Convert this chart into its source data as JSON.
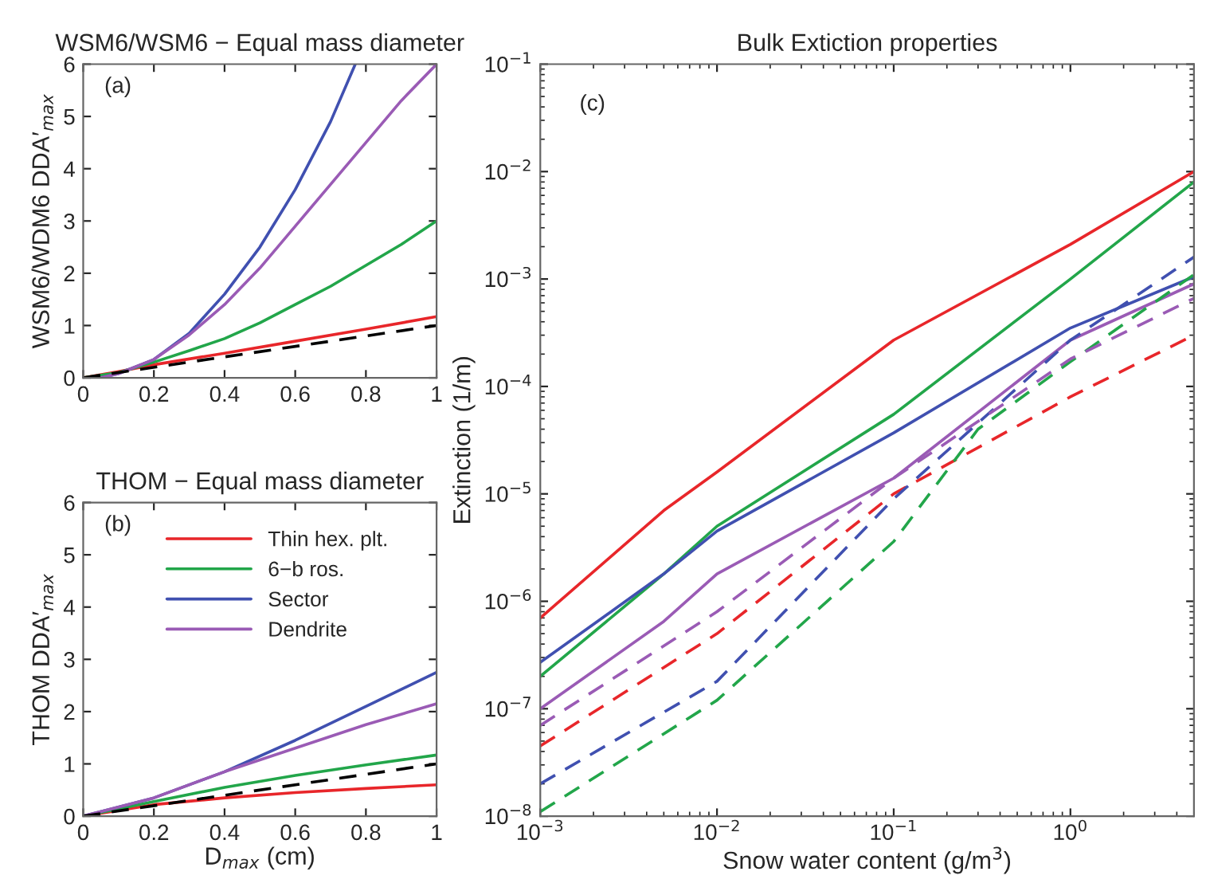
{
  "chart_data": [
    {
      "type": "line",
      "title": "WSM6/WSM6 − Equal mass diameter",
      "ylabel": "WSM6/WDM6 DDA′$_{max}$",
      "annotations": [
        "(a)"
      ],
      "xlim": [
        0,
        1
      ],
      "ylim": [
        0,
        6
      ],
      "xticks": [
        0,
        0.2,
        0.4,
        0.6,
        0.8,
        1
      ],
      "yticks": [
        0,
        1,
        2,
        3,
        4,
        5,
        6
      ],
      "legend": false,
      "grid": false,
      "series": [
        {
          "color": "#e8262a",
          "x": [
            0,
            0.1,
            0.2,
            0.4,
            0.6,
            0.8,
            1
          ],
          "values": [
            0,
            0.12,
            0.25,
            0.47,
            0.7,
            0.93,
            1.17
          ]
        },
        {
          "color": "#22a64a",
          "x": [
            0,
            0.1,
            0.2,
            0.3,
            0.4,
            0.5,
            0.6,
            0.7,
            0.8,
            0.9,
            1
          ],
          "values": [
            0,
            0.1,
            0.3,
            0.52,
            0.75,
            1.05,
            1.4,
            1.75,
            2.15,
            2.55,
            3.0
          ]
        },
        {
          "color": "#4050b0",
          "x": [
            0.05,
            0.1,
            0.2,
            0.3,
            0.4,
            0.5,
            0.6,
            0.7,
            0.77
          ],
          "values": [
            0,
            0.08,
            0.35,
            0.85,
            1.6,
            2.5,
            3.6,
            4.9,
            6
          ]
        },
        {
          "color": "#9a5bb5",
          "x": [
            0.05,
            0.1,
            0.2,
            0.3,
            0.4,
            0.5,
            0.6,
            0.7,
            0.8,
            0.9,
            1
          ],
          "values": [
            0,
            0.08,
            0.35,
            0.82,
            1.4,
            2.1,
            2.9,
            3.7,
            4.5,
            5.3,
            6
          ]
        },
        {
          "color": "#000000",
          "line_style": "dashed",
          "x": [
            0,
            1
          ],
          "values": [
            0,
            1
          ]
        }
      ]
    },
    {
      "type": "line",
      "title": "THOM − Equal mass diameter",
      "ylabel": "THOM DDA′$_{max}$",
      "xlabel": "D$_{max}$ (cm)",
      "annotations": [
        "(b)"
      ],
      "xlim": [
        0,
        1
      ],
      "ylim": [
        0,
        6
      ],
      "xticks": [
        0,
        0.2,
        0.4,
        0.6,
        0.8,
        1
      ],
      "yticks": [
        0,
        1,
        2,
        3,
        4,
        5,
        6
      ],
      "legend": "top",
      "grid": false,
      "series": [
        {
          "name": "Thin hex. plt.",
          "color": "#e8262a",
          "x": [
            0,
            0.2,
            0.4,
            0.6,
            0.8,
            1
          ],
          "values": [
            0,
            0.22,
            0.35,
            0.45,
            0.53,
            0.6
          ]
        },
        {
          "name": "6−b ros.",
          "color": "#22a64a",
          "x": [
            0,
            0.2,
            0.4,
            0.6,
            0.8,
            1
          ],
          "values": [
            0,
            0.28,
            0.55,
            0.78,
            0.98,
            1.17
          ]
        },
        {
          "name": "Sector",
          "color": "#4050b0",
          "x": [
            0,
            0.2,
            0.4,
            0.6,
            0.8,
            1
          ],
          "values": [
            0,
            0.35,
            0.85,
            1.45,
            2.1,
            2.75
          ]
        },
        {
          "name": "Dendrite",
          "color": "#9a5bb5",
          "x": [
            0,
            0.2,
            0.4,
            0.6,
            0.8,
            1
          ],
          "values": [
            0,
            0.35,
            0.85,
            1.3,
            1.75,
            2.15
          ]
        },
        {
          "color": "#000000",
          "line_style": "dashed",
          "x": [
            0,
            1
          ],
          "values": [
            0,
            1
          ]
        }
      ]
    },
    {
      "type": "line",
      "title": "Bulk Extiction properties",
      "xlabel": "Snow water content (g/m$^{3}$)",
      "ylabel": "Extinction (1/m)",
      "annotations": [
        "(c)"
      ],
      "log": "xy",
      "xlim": [
        0.001,
        5
      ],
      "ylim": [
        1e-08,
        0.1
      ],
      "xticks": [
        {
          "value": 0.001,
          "label": "10$^{−3}$"
        },
        {
          "value": 0.01,
          "label": "10$^{−2}$"
        },
        {
          "value": 0.1,
          "label": "10$^{−1}$"
        },
        {
          "value": 1,
          "label": "10$^{0}$"
        }
      ],
      "yticks": [
        {
          "value": 1e-08,
          "label": "10$^{−8}$"
        },
        {
          "value": 1e-07,
          "label": "10$^{−7}$"
        },
        {
          "value": 1e-06,
          "label": "10$^{−6}$"
        },
        {
          "value": 1e-05,
          "label": "10$^{−5}$"
        },
        {
          "value": 0.0001,
          "label": "10$^{−4}$"
        },
        {
          "value": 0.001,
          "label": "10$^{−3}$"
        },
        {
          "value": 0.01,
          "label": "10$^{−2}$"
        },
        {
          "value": 0.1,
          "label": "10$^{−1}$"
        }
      ],
      "legend": false,
      "grid": false,
      "series": [
        {
          "color": "#e8262a",
          "x": [
            0.001,
            0.005,
            0.01,
            0.1,
            1,
            5
          ],
          "values": [
            7e-07,
            7e-06,
            1.6e-05,
            0.00027,
            0.0021,
            0.01
          ]
        },
        {
          "color": "#22a64a",
          "x": [
            0.001,
            0.005,
            0.01,
            0.1,
            1,
            5
          ],
          "values": [
            2e-07,
            1.8e-06,
            5e-06,
            5.5e-05,
            0.001,
            0.008
          ]
        },
        {
          "color": "#4050b0",
          "x": [
            0.001,
            0.005,
            0.01,
            0.1,
            1,
            5
          ],
          "values": [
            2.7e-07,
            1.8e-06,
            4.5e-06,
            3.7e-05,
            0.00035,
            0.00105
          ]
        },
        {
          "color": "#9a5bb5",
          "x": [
            0.001,
            0.005,
            0.01,
            0.1,
            1,
            5
          ],
          "values": [
            1e-07,
            6.5e-07,
            1.8e-06,
            1.4e-05,
            0.00027,
            0.0009
          ]
        },
        {
          "color": "#e8262a",
          "line_style": "dashed",
          "x": [
            0.001,
            0.01,
            0.1,
            1,
            5
          ],
          "values": [
            4.5e-08,
            5e-07,
            1e-05,
            8e-05,
            0.0003
          ]
        },
        {
          "color": "#22a64a",
          "line_style": "dashed",
          "x": [
            0.001,
            0.01,
            0.1,
            0.3,
            1,
            5
          ],
          "values": [
            1.1e-08,
            1.2e-07,
            3.6e-06,
            4e-05,
            0.00017,
            0.0011
          ]
        },
        {
          "color": "#4050b0",
          "line_style": "dashed",
          "x": [
            0.001,
            0.01,
            0.1,
            1,
            5
          ],
          "values": [
            2e-08,
            1.8e-07,
            9e-06,
            0.00027,
            0.0016
          ]
        },
        {
          "color": "#9a5bb5",
          "line_style": "dashed",
          "x": [
            0.001,
            0.01,
            0.1,
            1,
            5
          ],
          "values": [
            7e-08,
            8e-07,
            1.4e-05,
            0.00018,
            0.00066
          ]
        }
      ]
    }
  ]
}
